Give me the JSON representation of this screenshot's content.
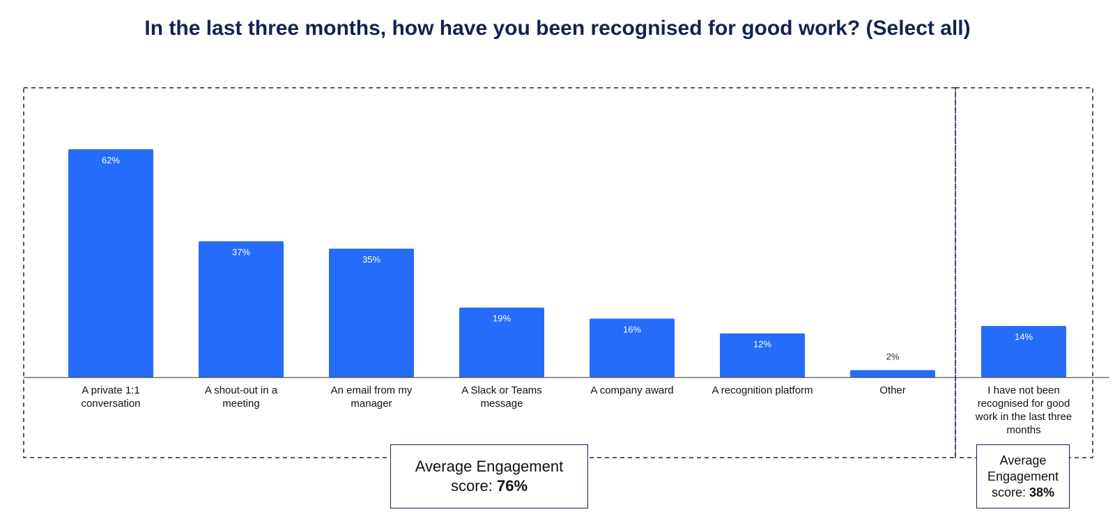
{
  "chart_data": {
    "type": "bar",
    "title": "In the last three months, how have you been recognised for good work? (Select all)",
    "xlabel": "",
    "ylabel": "",
    "ylim": [
      0,
      70
    ],
    "grid": false,
    "bar_color": "#256cfa",
    "inside_label_color": "#ffffff",
    "outside_label_color": "#333333",
    "frame_color": "#14234f",
    "categories": [
      "A private 1:1 conversation",
      "A shout-out in a meeting",
      "An email from my manager",
      "A Slack or Teams message",
      "A company award",
      "A recognition platform",
      "Other",
      "I have not been recognised for good work in the last three months"
    ],
    "values": [
      62,
      37,
      35,
      19,
      16,
      12,
      2,
      14
    ],
    "value_labels": [
      "62%",
      "37%",
      "35%",
      "19%",
      "16%",
      "12%",
      "2%",
      "14%"
    ],
    "label_lines": [
      [
        "A private 1:1",
        "conversation"
      ],
      [
        "A shout-out in a",
        "meeting"
      ],
      [
        "An email from my",
        "manager"
      ],
      [
        "A Slack or Teams",
        "message"
      ],
      [
        "A company award"
      ],
      [
        "A recognition platform"
      ],
      [
        "Other"
      ],
      [
        "I have not been",
        "recognised for good",
        "work in the last three",
        "months"
      ]
    ],
    "groups": [
      {
        "name": "recognised",
        "category_count": 7,
        "score_lines": [
          "Average Engagement",
          "score:"
        ],
        "score_value": "76%"
      },
      {
        "name": "not-recognised",
        "category_count": 1,
        "score_lines": [
          "Average",
          "Engagement",
          "score:"
        ],
        "score_value": "38%"
      }
    ]
  }
}
